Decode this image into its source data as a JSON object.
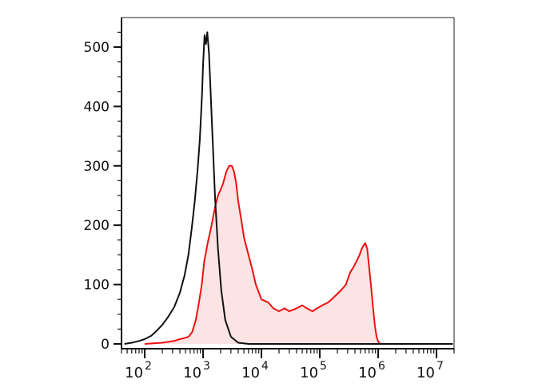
{
  "chart_data": {
    "type": "line",
    "title": "",
    "xlabel": "",
    "ylabel": "",
    "x_scale": "log",
    "xlim": [
      40,
      20000000
    ],
    "ylim": [
      0,
      550
    ],
    "yticks": [
      0,
      100,
      200,
      300,
      400,
      500
    ],
    "xticks": [
      {
        "value": 100,
        "base": "10",
        "exp": "2"
      },
      {
        "value": 1000,
        "base": "10",
        "exp": "3"
      },
      {
        "value": 10000,
        "base": "10",
        "exp": "4"
      },
      {
        "value": 100000,
        "base": "10",
        "exp": "5"
      },
      {
        "value": 1000000,
        "base": "10",
        "exp": "6"
      },
      {
        "value": 10000000,
        "base": "10",
        "exp": "7"
      }
    ],
    "grid": false,
    "series": [
      {
        "color": "#111111",
        "fill": "none",
        "x": [
          45,
          60,
          80,
          100,
          130,
          160,
          200,
          250,
          320,
          400,
          480,
          560,
          640,
          720,
          800,
          880,
          960,
          1000,
          1060,
          1120,
          1180,
          1260,
          1340,
          1450,
          1600,
          1800,
          2050,
          2400,
          3000,
          4000,
          6000,
          10000,
          1000000,
          19000000
        ],
        "values": [
          0,
          2,
          5,
          8,
          14,
          22,
          32,
          45,
          62,
          86,
          115,
          150,
          195,
          240,
          290,
          345,
          420,
          470,
          520,
          505,
          525,
          490,
          430,
          350,
          250,
          160,
          90,
          40,
          12,
          2,
          0,
          0,
          0,
          0
        ]
      },
      {
        "color": "#ee1111",
        "fill": "#fce4e4",
        "x": [
          100,
          200,
          320,
          400,
          480,
          560,
          650,
          750,
          850,
          950,
          1050,
          1200,
          1400,
          1600,
          1800,
          2000,
          2200,
          2500,
          2800,
          3100,
          3400,
          3700,
          4000,
          4500,
          5000,
          6000,
          7000,
          8000,
          10000,
          13000,
          16000,
          20000,
          25000,
          30000,
          40000,
          50000,
          60000,
          75000,
          90000,
          110000,
          140000,
          180000,
          230000,
          280000,
          330000,
          380000,
          430000,
          480000,
          520000,
          560000,
          600000,
          650000,
          700000,
          760000,
          820000,
          880000,
          940000,
          1000000,
          1100000,
          1300000,
          2000000,
          19000000
        ],
        "values": [
          0,
          2,
          5,
          8,
          10,
          12,
          20,
          40,
          70,
          100,
          140,
          170,
          200,
          230,
          250,
          260,
          270,
          290,
          300,
          300,
          290,
          270,
          240,
          210,
          180,
          150,
          125,
          100,
          75,
          70,
          60,
          55,
          60,
          55,
          60,
          65,
          60,
          55,
          60,
          65,
          70,
          80,
          90,
          100,
          120,
          130,
          140,
          150,
          160,
          165,
          170,
          160,
          130,
          95,
          60,
          30,
          12,
          4,
          0,
          0,
          0,
          0
        ]
      }
    ]
  }
}
